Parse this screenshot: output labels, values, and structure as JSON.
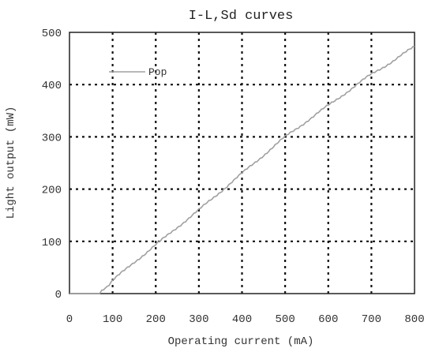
{
  "chart_data": {
    "type": "line",
    "title": "I-L,Sd curves",
    "xlabel": "Operating current (mA)",
    "ylabel": "Light output (mW)",
    "xlim": [
      0,
      800
    ],
    "ylim": [
      0,
      500
    ],
    "xticks": [
      "0",
      "100",
      "200",
      "300",
      "400",
      "500",
      "600",
      "700",
      "800"
    ],
    "yticks": [
      "0",
      "100",
      "200",
      "300",
      "400",
      "500"
    ],
    "grid": "dotted",
    "legend": "top-left",
    "series": [
      {
        "name": "Pop",
        "color": "#a0a0a0",
        "x": [
          0,
          70,
          75,
          100,
          150,
          200,
          250,
          300,
          350,
          400,
          450,
          500,
          550,
          600,
          650,
          700,
          750,
          800
        ],
        "y": [
          0,
          0,
          4,
          25,
          60,
          93,
          127,
          160,
          195,
          230,
          265,
          300,
          330,
          360,
          390,
          420,
          445,
          473
        ]
      }
    ]
  }
}
